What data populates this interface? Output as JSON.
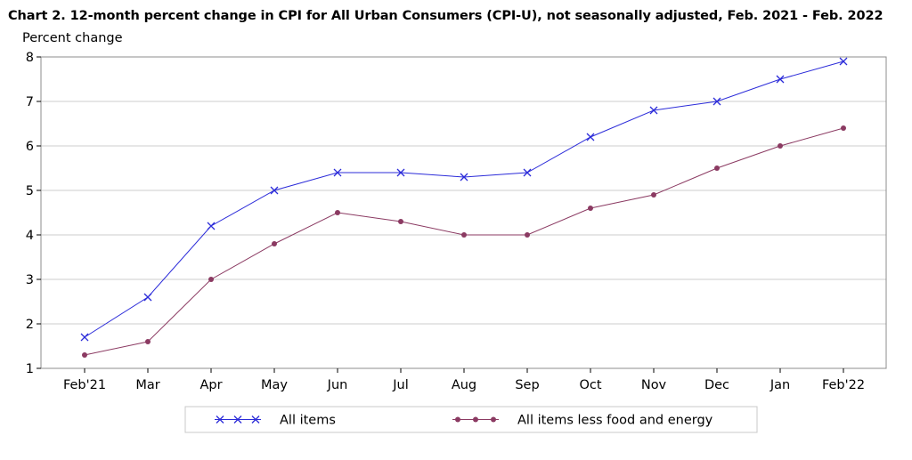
{
  "chart_data": {
    "type": "line",
    "title": "Chart 2. 12-month percent change in CPI for All Urban Consumers (CPI-U), not seasonally adjusted, Feb. 2021 - Feb. 2022",
    "ylabel": "Percent change",
    "xlabel": "",
    "categories": [
      "Feb'21",
      "Mar",
      "Apr",
      "May",
      "Jun",
      "Jul",
      "Aug",
      "Sep",
      "Oct",
      "Nov",
      "Dec",
      "Jan",
      "Feb'22"
    ],
    "ylim": [
      1,
      8
    ],
    "yticks": [
      1,
      2,
      3,
      4,
      5,
      6,
      7,
      8
    ],
    "grid": true,
    "legend_position": "bottom",
    "series": [
      {
        "name": "All items",
        "color": "#2b2bd9",
        "marker": "x",
        "values": [
          1.7,
          2.6,
          4.2,
          5.0,
          5.4,
          5.4,
          5.3,
          5.4,
          6.2,
          6.8,
          7.0,
          7.5,
          7.9
        ]
      },
      {
        "name": "All items less food and energy",
        "color": "#8b3a62",
        "marker": "circle",
        "values": [
          1.3,
          1.6,
          3.0,
          3.8,
          4.5,
          4.3,
          4.0,
          4.0,
          4.6,
          4.9,
          5.5,
          6.0,
          6.4
        ]
      }
    ]
  }
}
